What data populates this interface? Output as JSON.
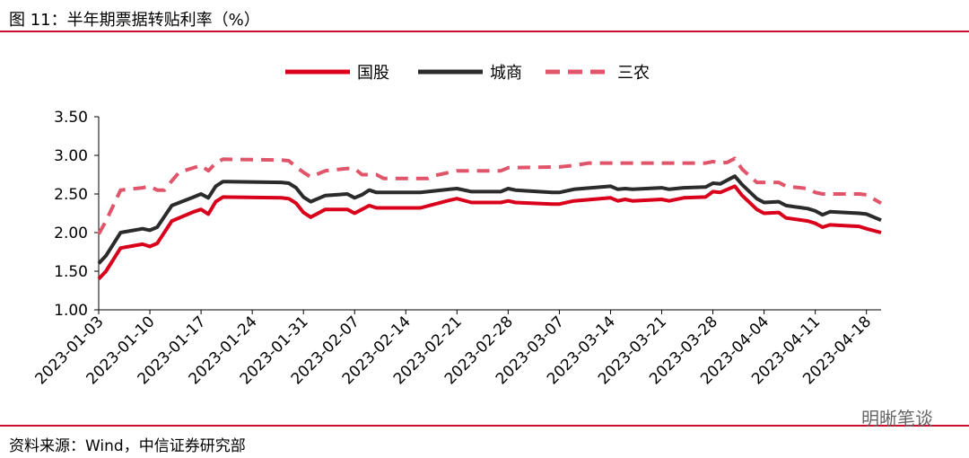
{
  "header": {
    "title": "图 11：半年期票据转贴利率（%）"
  },
  "footer": {
    "source": "资料来源：Wind，中信证券研究部",
    "watermark": "明晰笔谈"
  },
  "chart_data": {
    "type": "line",
    "ylim": [
      1.0,
      3.5
    ],
    "yticks": [
      "1.00",
      "1.50",
      "2.00",
      "2.50",
      "3.00",
      "3.50"
    ],
    "x_tick_labels": [
      "2023-01-03",
      "2023-01-10",
      "2023-01-17",
      "2023-01-24",
      "2023-01-31",
      "2023-02-07",
      "2023-02-14",
      "2023-02-21",
      "2023-02-28",
      "2023-03-07",
      "2023-03-14",
      "2023-03-21",
      "2023-03-28",
      "2023-04-04",
      "2023-04-11",
      "2023-04-18"
    ],
    "x_start": "2023-01-03",
    "x_end": "2023-04-20",
    "legend_position": "top-center",
    "grid": false,
    "series": [
      {
        "name": "国股",
        "color": "#d9001b",
        "dash": "solid",
        "points": [
          [
            "2023-01-03",
            1.4
          ],
          [
            "2023-01-04",
            1.5
          ],
          [
            "2023-01-06",
            1.8
          ],
          [
            "2023-01-09",
            1.85
          ],
          [
            "2023-01-10",
            1.82
          ],
          [
            "2023-01-11",
            1.86
          ],
          [
            "2023-01-13",
            2.15
          ],
          [
            "2023-01-16",
            2.27
          ],
          [
            "2023-01-17",
            2.3
          ],
          [
            "2023-01-18",
            2.24
          ],
          [
            "2023-01-19",
            2.4
          ],
          [
            "2023-01-20",
            2.46
          ],
          [
            "2023-01-28",
            2.45
          ],
          [
            "2023-01-29",
            2.44
          ],
          [
            "2023-01-30",
            2.38
          ],
          [
            "2023-01-31",
            2.26
          ],
          [
            "2023-02-01",
            2.2
          ],
          [
            "2023-02-03",
            2.3
          ],
          [
            "2023-02-06",
            2.3
          ],
          [
            "2023-02-07",
            2.25
          ],
          [
            "2023-02-08",
            2.3
          ],
          [
            "2023-02-09",
            2.35
          ],
          [
            "2023-02-10",
            2.32
          ],
          [
            "2023-02-16",
            2.32
          ],
          [
            "2023-02-20",
            2.42
          ],
          [
            "2023-02-21",
            2.44
          ],
          [
            "2023-02-23",
            2.39
          ],
          [
            "2023-02-27",
            2.39
          ],
          [
            "2023-02-28",
            2.41
          ],
          [
            "2023-03-01",
            2.39
          ],
          [
            "2023-03-06",
            2.37
          ],
          [
            "2023-03-07",
            2.37
          ],
          [
            "2023-03-09",
            2.41
          ],
          [
            "2023-03-14",
            2.45
          ],
          [
            "2023-03-15",
            2.41
          ],
          [
            "2023-03-16",
            2.43
          ],
          [
            "2023-03-17",
            2.41
          ],
          [
            "2023-03-21",
            2.43
          ],
          [
            "2023-03-22",
            2.41
          ],
          [
            "2023-03-24",
            2.45
          ],
          [
            "2023-03-27",
            2.46
          ],
          [
            "2023-03-28",
            2.53
          ],
          [
            "2023-03-29",
            2.52
          ],
          [
            "2023-03-31",
            2.6
          ],
          [
            "2023-04-01",
            2.48
          ],
          [
            "2023-04-03",
            2.3
          ],
          [
            "2023-04-04",
            2.25
          ],
          [
            "2023-04-06",
            2.26
          ],
          [
            "2023-04-07",
            2.19
          ],
          [
            "2023-04-10",
            2.15
          ],
          [
            "2023-04-11",
            2.12
          ],
          [
            "2023-04-12",
            2.07
          ],
          [
            "2023-04-13",
            2.1
          ],
          [
            "2023-04-17",
            2.08
          ],
          [
            "2023-04-18",
            2.05
          ],
          [
            "2023-04-20",
            2.0
          ]
        ]
      },
      {
        "name": "城商",
        "color": "#2b2b2b",
        "dash": "solid",
        "points": [
          [
            "2023-01-03",
            1.6
          ],
          [
            "2023-01-04",
            1.7
          ],
          [
            "2023-01-06",
            2.0
          ],
          [
            "2023-01-09",
            2.05
          ],
          [
            "2023-01-10",
            2.03
          ],
          [
            "2023-01-11",
            2.07
          ],
          [
            "2023-01-13",
            2.35
          ],
          [
            "2023-01-16",
            2.46
          ],
          [
            "2023-01-17",
            2.5
          ],
          [
            "2023-01-18",
            2.45
          ],
          [
            "2023-01-19",
            2.6
          ],
          [
            "2023-01-20",
            2.66
          ],
          [
            "2023-01-28",
            2.65
          ],
          [
            "2023-01-29",
            2.64
          ],
          [
            "2023-01-30",
            2.58
          ],
          [
            "2023-01-31",
            2.46
          ],
          [
            "2023-02-01",
            2.4
          ],
          [
            "2023-02-03",
            2.48
          ],
          [
            "2023-02-06",
            2.5
          ],
          [
            "2023-02-07",
            2.45
          ],
          [
            "2023-02-08",
            2.49
          ],
          [
            "2023-02-09",
            2.55
          ],
          [
            "2023-02-10",
            2.52
          ],
          [
            "2023-02-16",
            2.52
          ],
          [
            "2023-02-20",
            2.56
          ],
          [
            "2023-02-21",
            2.57
          ],
          [
            "2023-02-23",
            2.53
          ],
          [
            "2023-02-27",
            2.53
          ],
          [
            "2023-02-28",
            2.57
          ],
          [
            "2023-03-01",
            2.55
          ],
          [
            "2023-03-06",
            2.52
          ],
          [
            "2023-03-07",
            2.52
          ],
          [
            "2023-03-09",
            2.56
          ],
          [
            "2023-03-14",
            2.6
          ],
          [
            "2023-03-15",
            2.56
          ],
          [
            "2023-03-16",
            2.57
          ],
          [
            "2023-03-17",
            2.56
          ],
          [
            "2023-03-21",
            2.58
          ],
          [
            "2023-03-22",
            2.56
          ],
          [
            "2023-03-24",
            2.58
          ],
          [
            "2023-03-27",
            2.59
          ],
          [
            "2023-03-28",
            2.64
          ],
          [
            "2023-03-29",
            2.63
          ],
          [
            "2023-03-31",
            2.73
          ],
          [
            "2023-04-01",
            2.62
          ],
          [
            "2023-04-03",
            2.44
          ],
          [
            "2023-04-04",
            2.39
          ],
          [
            "2023-04-06",
            2.4
          ],
          [
            "2023-04-07",
            2.35
          ],
          [
            "2023-04-10",
            2.31
          ],
          [
            "2023-04-11",
            2.28
          ],
          [
            "2023-04-12",
            2.23
          ],
          [
            "2023-04-13",
            2.27
          ],
          [
            "2023-04-17",
            2.25
          ],
          [
            "2023-04-18",
            2.24
          ],
          [
            "2023-04-20",
            2.16
          ]
        ]
      },
      {
        "name": "三农",
        "color": "#e0556a",
        "dash": "dashed",
        "points": [
          [
            "2023-01-03",
            1.98
          ],
          [
            "2023-01-04",
            2.15
          ],
          [
            "2023-01-06",
            2.55
          ],
          [
            "2023-01-09",
            2.58
          ],
          [
            "2023-01-10",
            2.6
          ],
          [
            "2023-01-11",
            2.55
          ],
          [
            "2023-01-12",
            2.55
          ],
          [
            "2023-01-13",
            2.67
          ],
          [
            "2023-01-14",
            2.78
          ],
          [
            "2023-01-17",
            2.87
          ],
          [
            "2023-01-18",
            2.8
          ],
          [
            "2023-01-19",
            2.9
          ],
          [
            "2023-01-20",
            2.95
          ],
          [
            "2023-01-28",
            2.94
          ],
          [
            "2023-01-29",
            2.93
          ],
          [
            "2023-01-30",
            2.85
          ],
          [
            "2023-01-31",
            2.78
          ],
          [
            "2023-02-01",
            2.72
          ],
          [
            "2023-02-03",
            2.8
          ],
          [
            "2023-02-06",
            2.83
          ],
          [
            "2023-02-07",
            2.83
          ],
          [
            "2023-02-08",
            2.75
          ],
          [
            "2023-02-10",
            2.75
          ],
          [
            "2023-02-11",
            2.7
          ],
          [
            "2023-02-17",
            2.7
          ],
          [
            "2023-02-18",
            2.74
          ],
          [
            "2023-02-20",
            2.78
          ],
          [
            "2023-02-21",
            2.8
          ],
          [
            "2023-02-27",
            2.8
          ],
          [
            "2023-02-28",
            2.84
          ],
          [
            "2023-03-07",
            2.85
          ],
          [
            "2023-03-09",
            2.87
          ],
          [
            "2023-03-11",
            2.9
          ],
          [
            "2023-03-27",
            2.9
          ],
          [
            "2023-03-28",
            2.92
          ],
          [
            "2023-03-29",
            2.9
          ],
          [
            "2023-03-30",
            2.91
          ],
          [
            "2023-03-31",
            2.96
          ],
          [
            "2023-04-01",
            2.82
          ],
          [
            "2023-04-03",
            2.65
          ],
          [
            "2023-04-06",
            2.65
          ],
          [
            "2023-04-07",
            2.6
          ],
          [
            "2023-04-10",
            2.57
          ],
          [
            "2023-04-11",
            2.52
          ],
          [
            "2023-04-12",
            2.5
          ],
          [
            "2023-04-17",
            2.5
          ],
          [
            "2023-04-18",
            2.49
          ],
          [
            "2023-04-20",
            2.38
          ]
        ]
      }
    ]
  }
}
